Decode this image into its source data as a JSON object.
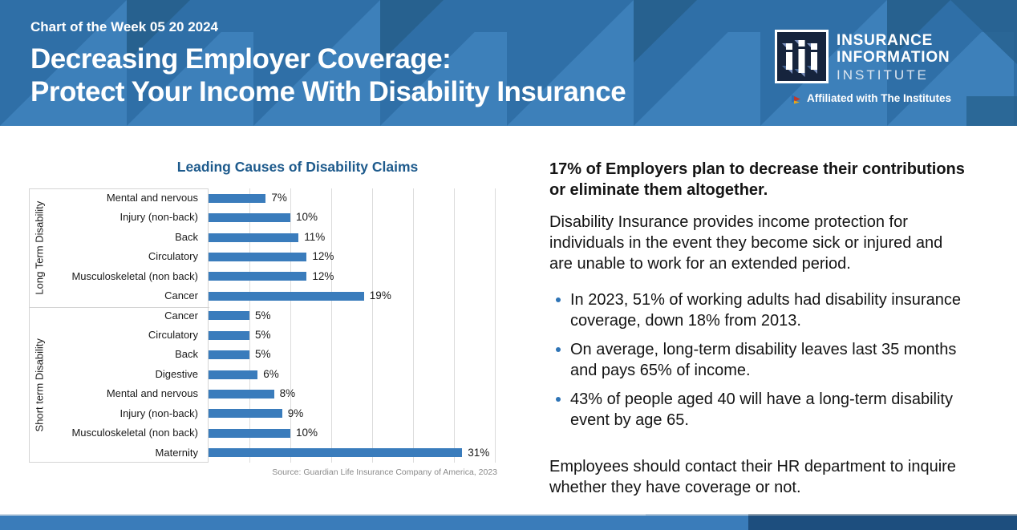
{
  "header": {
    "kicker": "Chart of the Week 05 20 2024",
    "title_line1": "Decreasing Employer Coverage:",
    "title_line2": "Protect Your Income With Disability Insurance",
    "logo": {
      "monogram": "iii-monogram",
      "org_line1": "INSURANCE",
      "org_line2": "INFORMATION",
      "org_line3": "INSTITUTE",
      "affiliation": "Affiliated with The Institutes",
      "affiliation_icon": "play-triangles-icon"
    }
  },
  "chart_data": {
    "type": "bar",
    "orientation": "horizontal",
    "title": "Leading Causes of Disability Claims",
    "groups": [
      {
        "label": "Long Term Disability",
        "categories": [
          "Mental and nervous",
          "Injury (non-back)",
          "Back",
          "Circulatory",
          "Musculoskeletal (non back)",
          "Cancer"
        ],
        "values": [
          7,
          10,
          11,
          12,
          12,
          19
        ]
      },
      {
        "label": "Short term Disability",
        "categories": [
          "Cancer",
          "Circulatory",
          "Back",
          "Digestive",
          "Mental and nervous",
          "Injury (non-back)",
          "Musculoskeletal (non back)",
          "Maternity"
        ],
        "values": [
          5,
          5,
          5,
          6,
          8,
          9,
          10,
          31
        ]
      }
    ],
    "value_suffix": "%",
    "xlim": [
      0,
      35
    ],
    "x_ticks": [
      5,
      10,
      15,
      20,
      25,
      30,
      35
    ],
    "gridlines": true,
    "legend": "none",
    "data_labels": true,
    "bar_color": "#3a7cbc",
    "source": "Source: Guardian Life Insurance Company of America, 2023"
  },
  "content": {
    "lead": "17% of Employers plan to decrease their contributions or eliminate them altogether.",
    "intro": "Disability Insurance provides income protection for individuals in the event they become sick or injured and are unable to work for an extended period.",
    "bullets": [
      "In 2023, 51% of working adults had disability insurance coverage, down 18% from 2013.",
      "On average, long-term disability leaves last 35 months and pays 65% of income.",
      "43% of people aged 40 will have a long-term disability event by age 65."
    ],
    "closing": "Employees should contact their HR department to inquire whether they have coverage or not."
  },
  "colors": {
    "header_base": "#2f6fa7",
    "header_light_triangle": "#3d80ba",
    "header_dark_triangle": "#27618f",
    "chart_title": "#1d5a8c",
    "bar": "#3a7cbc",
    "bullet_dot": "#2e74b6",
    "footer_left": "#3a7cba",
    "footer_right": "#1d4e7e",
    "logo_box": "#16243d"
  }
}
